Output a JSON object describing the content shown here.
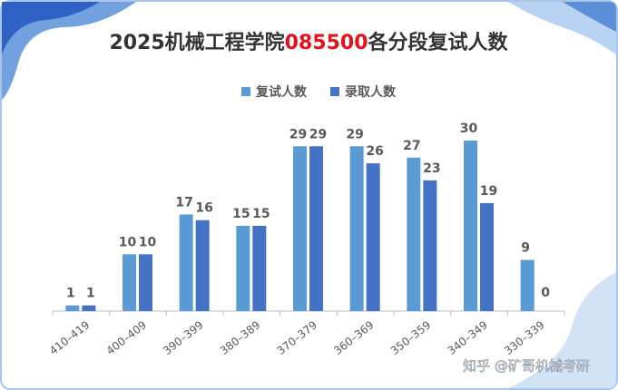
{
  "chart_data": {
    "type": "bar",
    "title": [
      "2025机械工程学院",
      "085500",
      "各分段复试人数"
    ],
    "title_colors": [
      "#333333",
      "#e8101a",
      "#333333"
    ],
    "categories": [
      "410–419",
      "400–409",
      "390–399",
      "380–389",
      "370–379",
      "360–369",
      "350–359",
      "340–349",
      "330–339"
    ],
    "series": [
      {
        "name": "复试人数",
        "color": "#5b9bd5",
        "values": [
          1,
          10,
          17,
          15,
          29,
          29,
          27,
          30,
          9
        ]
      },
      {
        "name": "录取人数",
        "color": "#4472c4",
        "values": [
          1,
          10,
          16,
          15,
          29,
          26,
          23,
          19,
          0
        ]
      }
    ],
    "legend": "top",
    "watermark": "知乎 @矿哥机械考研"
  }
}
